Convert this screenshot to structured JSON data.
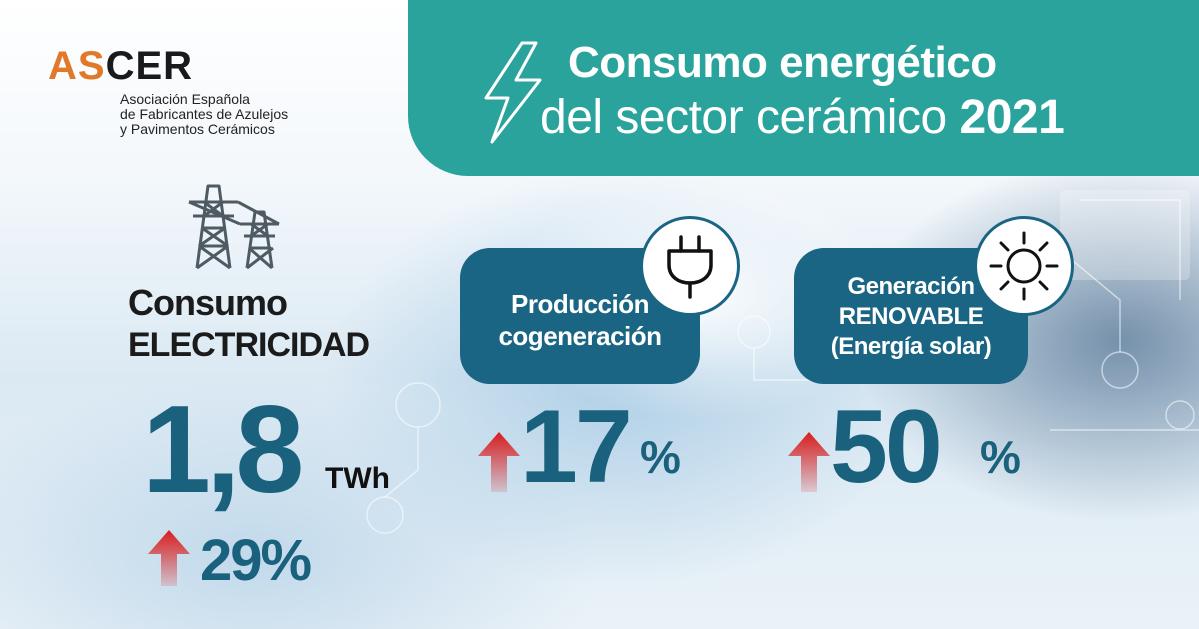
{
  "colors": {
    "teal": "#2aa39c",
    "navy": "#1a6583",
    "value_blue": "#1a617d",
    "arrow_red": "#d81e1e",
    "logo_orange": "#e1782a"
  },
  "logo": {
    "brand_as": "AS",
    "brand_cer": "CER",
    "subtitle_lines": [
      "Asociación Española",
      "de Fabricantes de Azulejos",
      "y Pavimentos Cerámicos"
    ]
  },
  "title": {
    "line1": "Consumo energético",
    "line2_prefix": "del sector cerámico",
    "year": "2021",
    "icon": "lightning-bolt-icon"
  },
  "electricity": {
    "icon": "power-tower-icon",
    "label_line1": "Consumo",
    "label_line2": "ELECTRICIDAD",
    "value": "1,8",
    "unit": "TWh",
    "change": "29%",
    "trend": "up"
  },
  "cogeneration": {
    "icon": "plug-icon",
    "label_line1": "Producción",
    "label_line2": "cogeneración",
    "value": "17",
    "percent_sign": "%",
    "trend": "up"
  },
  "renewable": {
    "icon": "sun-icon",
    "label_line1": "Generación",
    "label_line2": "RENOVABLE",
    "label_line3": "(Energía solar)",
    "value": "50",
    "percent_sign": "%",
    "trend": "up"
  }
}
